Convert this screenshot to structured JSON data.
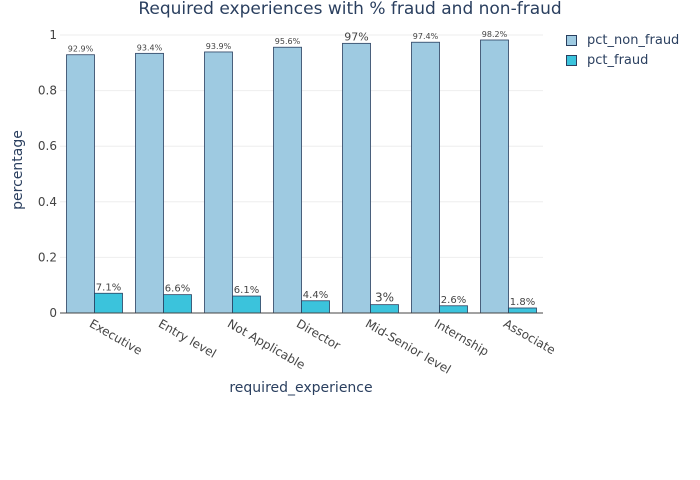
{
  "chart_data": {
    "type": "bar",
    "title": "Required experiences with % fraud and non-fraud",
    "xlabel": "required_experience",
    "ylabel": "percentage",
    "ylim": [
      0,
      1.0
    ],
    "yticks": [
      0,
      0.2,
      0.4,
      0.6,
      0.8,
      1
    ],
    "ytick_labels": [
      "0",
      "0.2",
      "0.4",
      "0.6",
      "0.8",
      "1"
    ],
    "grid": true,
    "legend_position": "top-right",
    "categories": [
      "Executive",
      "Entry level",
      "Not Applicable",
      "Director",
      "Mid-Senior level",
      "Internship",
      "Associate"
    ],
    "series": [
      {
        "name": "pct_non_fraud",
        "color": "#9ecae1",
        "values": [
          0.929,
          0.934,
          0.939,
          0.956,
          0.97,
          0.974,
          0.982
        ],
        "labels": [
          "92.9%",
          "93.4%",
          "93.9%",
          "95.6%",
          "97%",
          "97.4%",
          "98.2%"
        ]
      },
      {
        "name": "pct_fraud",
        "color": "#3bc3dc",
        "values": [
          0.071,
          0.066,
          0.061,
          0.044,
          0.03,
          0.026,
          0.018
        ],
        "labels": [
          "7.1%",
          "6.6%",
          "6.1%",
          "4.4%",
          "3%",
          "2.6%",
          "1.8%"
        ]
      }
    ]
  }
}
